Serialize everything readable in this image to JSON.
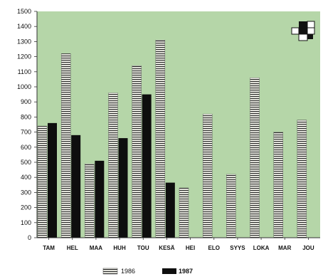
{
  "chart_data": {
    "type": "bar",
    "categories": [
      "TAM",
      "HEL",
      "MAA",
      "HUH",
      "TOU",
      "KESÄ",
      "HEI",
      "ELO",
      "SYYS",
      "LOKA",
      "MAR",
      "JOU"
    ],
    "series": [
      {
        "name": "1986",
        "values": [
          740,
          1220,
          490,
          960,
          1140,
          1310,
          330,
          820,
          420,
          1060,
          700,
          780
        ]
      },
      {
        "name": "1987",
        "values": [
          760,
          680,
          510,
          660,
          950,
          365,
          null,
          null,
          null,
          null,
          null,
          null
        ]
      }
    ],
    "ylim": [
      0,
      1500
    ],
    "yticks": [
      0,
      100,
      200,
      300,
      400,
      500,
      600,
      700,
      800,
      900,
      1000,
      1100,
      1200,
      1300,
      1400,
      1500
    ],
    "grid": false,
    "legend_position": "bottom-center",
    "colors": {
      "plot_background": "#b5d6a8",
      "series_1986": "#f4f4ec",
      "series_1986_stripe": "#2a2a2a",
      "series_1987": "#0e0e0e"
    }
  }
}
